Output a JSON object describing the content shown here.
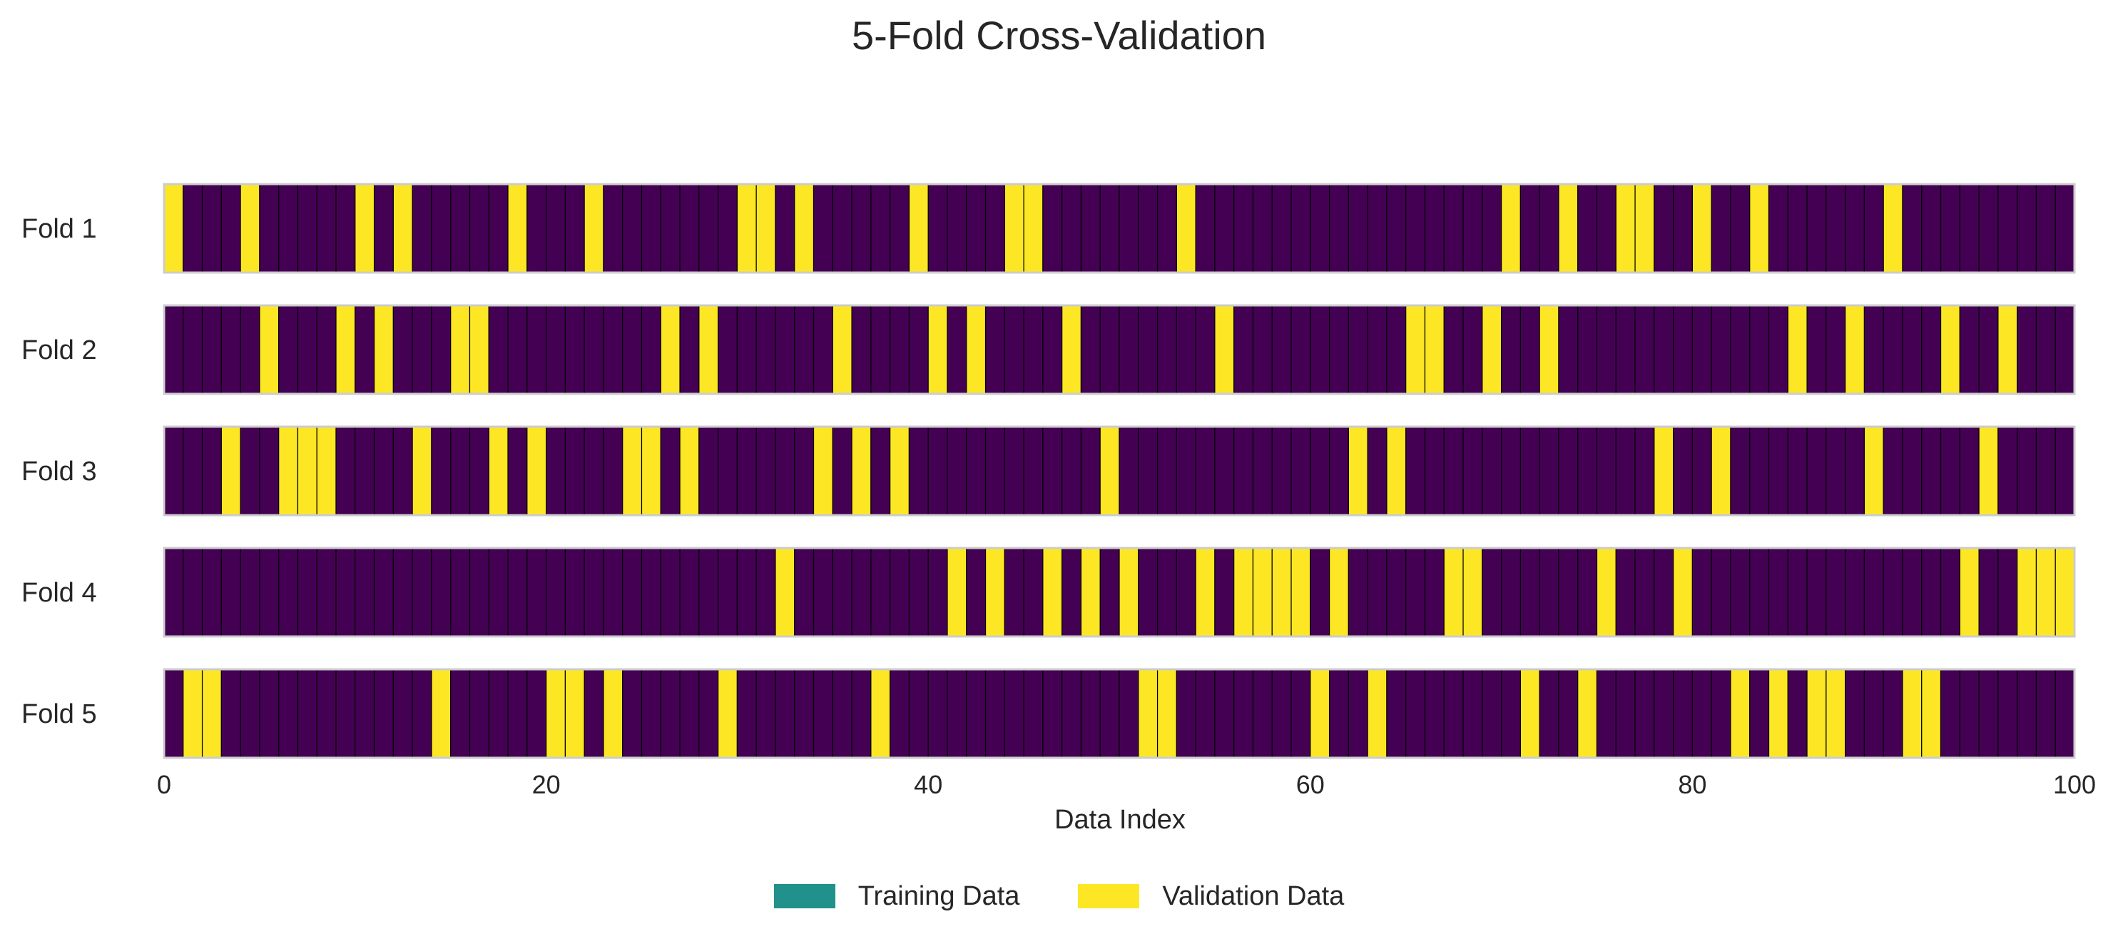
{
  "colors": {
    "training": "#440154",
    "validation": "#fde725",
    "legend_training": "#21918c",
    "frame": "#cccccc",
    "separator": "#000000"
  },
  "chart_data": {
    "type": "heatmap",
    "title": "5-Fold Cross-Validation",
    "xlabel": "Data Index",
    "ylabel": "",
    "xlim": [
      0,
      100
    ],
    "xticks": [
      0,
      20,
      40,
      60,
      80,
      100
    ],
    "grid": false,
    "legend_position": "bottom-center",
    "n_samples": 100,
    "legend": [
      {
        "label": "Training Data",
        "color_key": "legend_training"
      },
      {
        "label": "Validation Data",
        "color_key": "validation"
      }
    ],
    "folds": [
      {
        "name": "Fold 1",
        "validation_indices": [
          0,
          4,
          10,
          12,
          18,
          22,
          30,
          31,
          33,
          39,
          44,
          45,
          53,
          70,
          73,
          76,
          77,
          80,
          83,
          90
        ]
      },
      {
        "name": "Fold 2",
        "validation_indices": [
          5,
          9,
          11,
          15,
          16,
          26,
          28,
          35,
          40,
          42,
          47,
          55,
          65,
          66,
          69,
          72,
          85,
          88,
          93,
          96
        ]
      },
      {
        "name": "Fold 3",
        "validation_indices": [
          3,
          6,
          7,
          8,
          13,
          17,
          19,
          24,
          25,
          27,
          34,
          36,
          38,
          49,
          62,
          64,
          78,
          81,
          89,
          95
        ]
      },
      {
        "name": "Fold 4",
        "validation_indices": [
          32,
          41,
          43,
          46,
          48,
          50,
          54,
          56,
          57,
          58,
          59,
          61,
          67,
          68,
          75,
          79,
          94,
          97,
          98,
          99
        ]
      },
      {
        "name": "Fold 5",
        "validation_indices": [
          1,
          2,
          14,
          20,
          21,
          23,
          29,
          37,
          51,
          52,
          60,
          63,
          71,
          74,
          82,
          84,
          86,
          87,
          91,
          92
        ]
      }
    ]
  }
}
